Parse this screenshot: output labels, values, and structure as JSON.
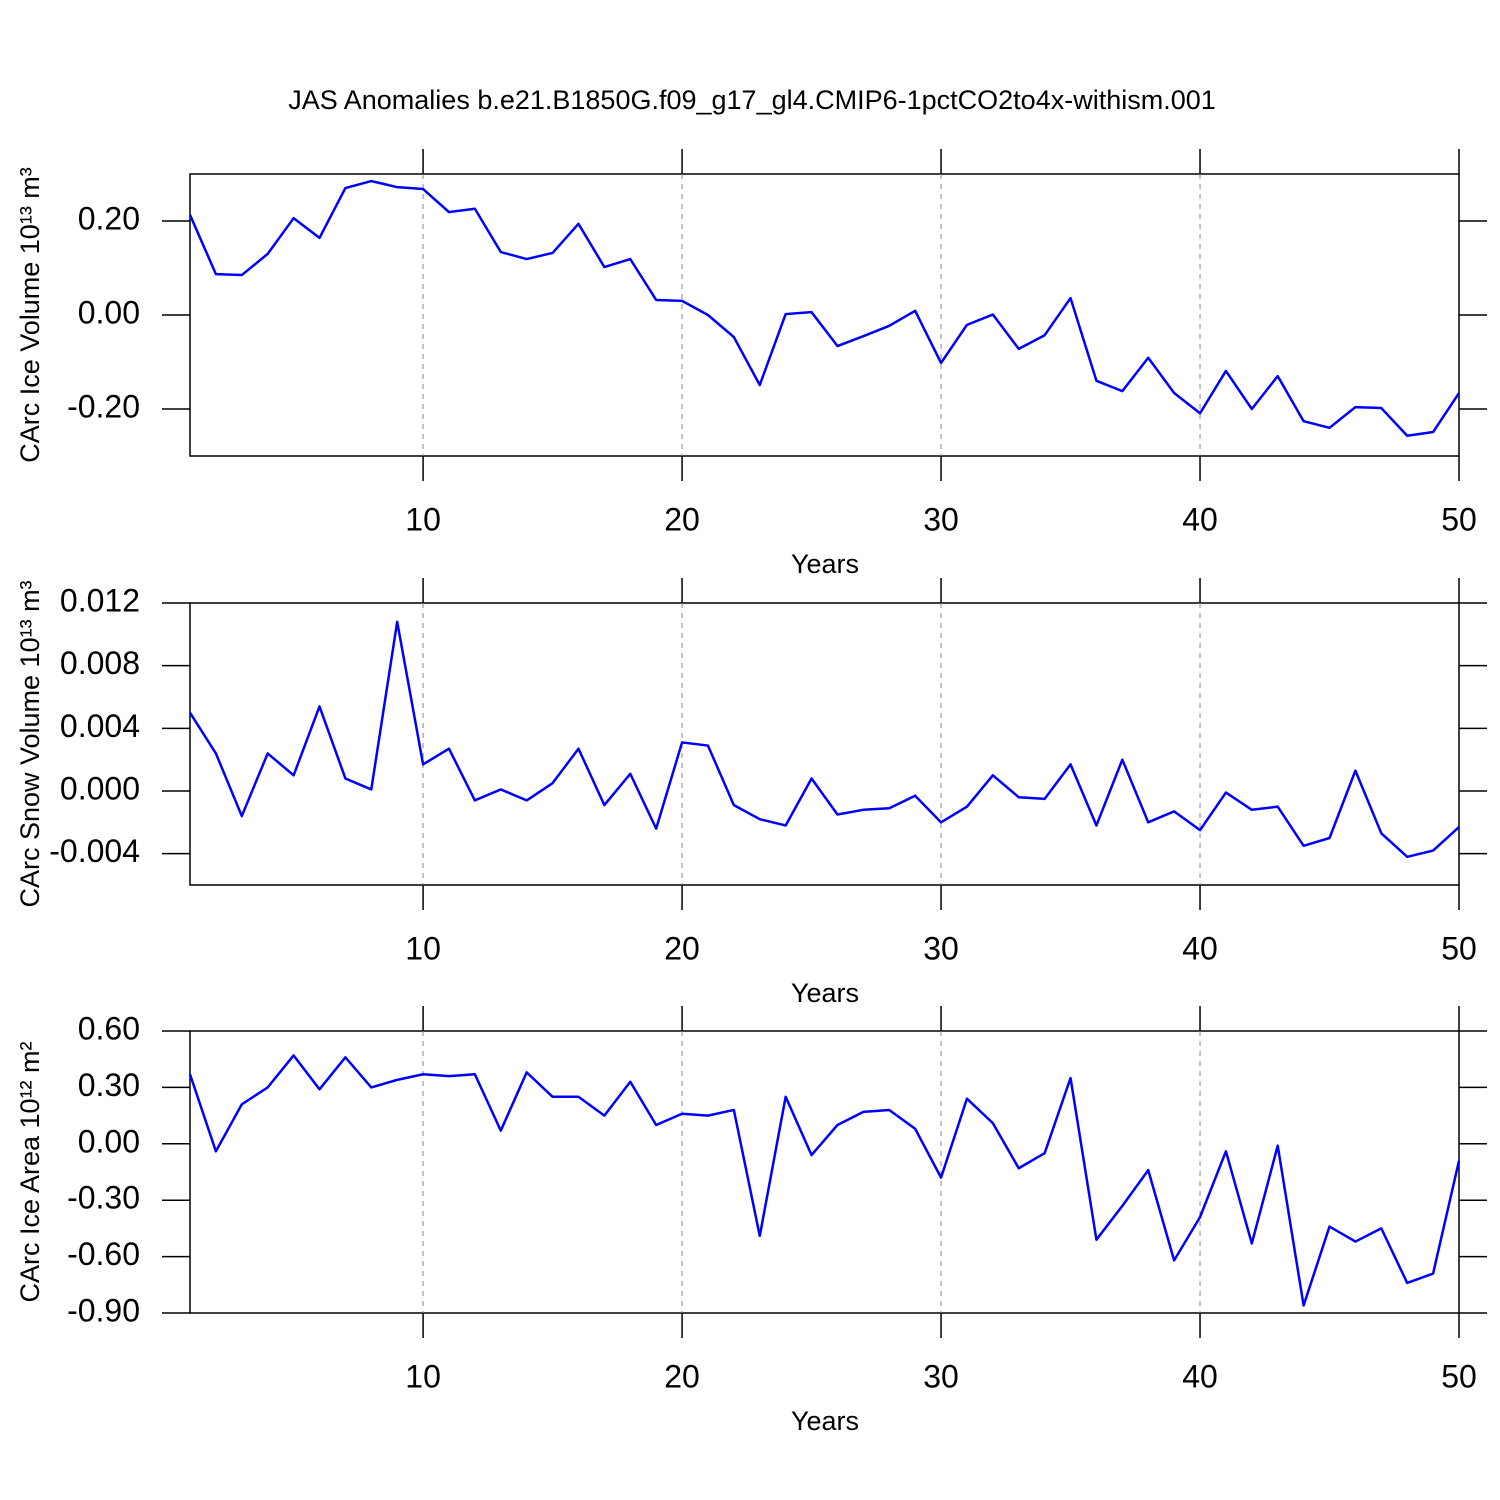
{
  "chart_data": [
    {
      "type": "line",
      "title": "JAS Anomalies b.e21.B1850G.f09_g17_gl4.CMIP6-1pctCO2to4x-withism.001",
      "ylabel": "CArc Ice Volume 10¹³ m³",
      "xlabel": "Years",
      "x": [
        1,
        2,
        3,
        4,
        5,
        6,
        7,
        8,
        9,
        10,
        11,
        12,
        13,
        14,
        15,
        16,
        17,
        18,
        19,
        20,
        21,
        22,
        23,
        24,
        25,
        26,
        27,
        28,
        29,
        30,
        31,
        32,
        33,
        34,
        35,
        36,
        37,
        38,
        39,
        40,
        41,
        42,
        43,
        44,
        45,
        46,
        47,
        48,
        49,
        50
      ],
      "values": [
        0.213,
        0.087,
        0.085,
        0.13,
        0.206,
        0.164,
        0.27,
        0.285,
        0.272,
        0.268,
        0.219,
        0.226,
        0.134,
        0.119,
        0.132,
        0.194,
        0.102,
        0.119,
        0.032,
        0.03,
        0.0,
        -0.047,
        -0.149,
        0.002,
        0.006,
        -0.066,
        -0.045,
        -0.023,
        0.009,
        -0.102,
        -0.021,
        0.001,
        -0.072,
        -0.043,
        0.036,
        -0.14,
        -0.162,
        -0.091,
        -0.166,
        -0.209,
        -0.119,
        -0.2,
        -0.13,
        -0.226,
        -0.24,
        -0.196,
        -0.198,
        -0.257,
        -0.249,
        -0.166
      ],
      "color": "#0000ff",
      "xlim": [
        1,
        50
      ],
      "xticks": [
        10,
        20,
        30,
        40,
        50
      ],
      "ylim": [
        -0.3,
        0.3
      ],
      "yticks": [
        {
          "value": -0.2,
          "label": "-0.20"
        },
        {
          "value": 0,
          "label": "0.00"
        },
        {
          "value": 0.2,
          "label": "0.20"
        }
      ],
      "grid": true
    },
    {
      "type": "line",
      "ylabel": "CArc Snow Volume 10¹³ m³",
      "xlabel": "Years",
      "x": [
        1,
        2,
        3,
        4,
        5,
        6,
        7,
        8,
        9,
        10,
        11,
        12,
        13,
        14,
        15,
        16,
        17,
        18,
        19,
        20,
        21,
        22,
        23,
        24,
        25,
        26,
        27,
        28,
        29,
        30,
        31,
        32,
        33,
        34,
        35,
        36,
        37,
        38,
        39,
        40,
        41,
        42,
        43,
        44,
        45,
        46,
        47,
        48,
        49,
        50
      ],
      "values": [
        0.005,
        0.0024,
        -0.0016,
        0.0024,
        0.001,
        0.0054,
        0.0008,
        0.0001,
        0.0108,
        0.0017,
        0.0027,
        -0.0006,
        0.0001,
        -0.0006,
        0.0005,
        0.0027,
        -0.0009,
        0.0011,
        -0.0024,
        0.0031,
        0.0029,
        -0.0009,
        -0.0018,
        -0.0022,
        0.0008,
        -0.0015,
        -0.0012,
        -0.0011,
        -0.0003,
        -0.002,
        -0.001,
        0.001,
        -0.0004,
        -0.0005,
        0.0017,
        -0.0022,
        0.002,
        -0.002,
        -0.0013,
        -0.0025,
        -0.0001,
        -0.0012,
        -0.001,
        -0.0035,
        -0.003,
        0.0013,
        -0.0027,
        -0.0042,
        -0.0038,
        -0.0023
      ],
      "color": "#0000ff",
      "xlim": [
        1,
        50
      ],
      "xticks": [
        10,
        20,
        30,
        40,
        50
      ],
      "ylim": [
        -0.006,
        0.012
      ],
      "yticks": [
        {
          "value": -0.004,
          "label": "-0.004"
        },
        {
          "value": 0,
          "label": "0.000"
        },
        {
          "value": 0.004,
          "label": "0.004"
        },
        {
          "value": 0.008,
          "label": "0.008"
        },
        {
          "value": 0.012,
          "label": "0.012"
        }
      ],
      "grid": true
    },
    {
      "type": "line",
      "ylabel": "CArc Ice Area 10¹² m²",
      "xlabel": "Years",
      "x": [
        1,
        2,
        3,
        4,
        5,
        6,
        7,
        8,
        9,
        10,
        11,
        12,
        13,
        14,
        15,
        16,
        17,
        18,
        19,
        20,
        21,
        22,
        23,
        24,
        25,
        26,
        27,
        28,
        29,
        30,
        31,
        32,
        33,
        34,
        35,
        36,
        37,
        38,
        39,
        40,
        41,
        42,
        43,
        44,
        45,
        46,
        47,
        48,
        49,
        50
      ],
      "values": [
        0.37,
        -0.04,
        0.21,
        0.3,
        0.47,
        0.29,
        0.46,
        0.3,
        0.34,
        0.37,
        0.36,
        0.37,
        0.07,
        0.38,
        0.25,
        0.25,
        0.15,
        0.33,
        0.1,
        0.16,
        0.15,
        0.18,
        -0.49,
        0.25,
        -0.06,
        0.1,
        0.17,
        0.18,
        0.08,
        -0.18,
        0.24,
        0.11,
        -0.13,
        -0.05,
        0.35,
        -0.51,
        -0.33,
        -0.14,
        -0.62,
        -0.39,
        -0.04,
        -0.53,
        -0.01,
        -0.86,
        -0.44,
        -0.52,
        -0.45,
        -0.74,
        -0.69,
        -0.09
      ],
      "color": "#0000ff",
      "xlim": [
        1,
        50
      ],
      "xticks": [
        10,
        20,
        30,
        40,
        50
      ],
      "ylim": [
        -0.9,
        0.6
      ],
      "yticks": [
        {
          "value": -0.9,
          "label": "-0.90"
        },
        {
          "value": -0.6,
          "label": "-0.60"
        },
        {
          "value": -0.3,
          "label": "-0.30"
        },
        {
          "value": 0,
          "label": "0.00"
        },
        {
          "value": 0.3,
          "label": "0.30"
        },
        {
          "value": 0.6,
          "label": "0.60"
        }
      ],
      "grid": true
    }
  ]
}
